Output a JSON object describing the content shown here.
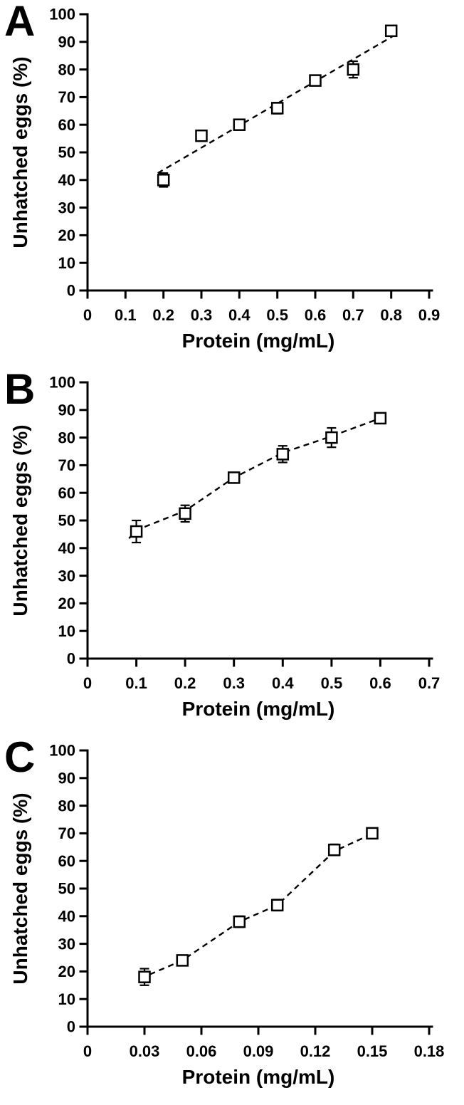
{
  "colors": {
    "foreground": "#000000",
    "background": "#ffffff",
    "marker_fill": "#ffffff"
  },
  "chart_data": [
    {
      "type": "scatter",
      "panel_label": "A",
      "xlabel": "Protein (mg/mL)",
      "ylabel": "Unhatched eggs (%)",
      "xlim": [
        0,
        0.9
      ],
      "ylim": [
        0,
        100
      ],
      "xtick_values": [
        0,
        0.1,
        0.2,
        0.3,
        0.4,
        0.5,
        0.6,
        0.7,
        0.8,
        0.9
      ],
      "xtick_labels": [
        "0",
        "0.1",
        "0.2",
        "0.3",
        "0.4",
        "0.5",
        "0.6",
        "0.7",
        "0.8",
        "0.9"
      ],
      "ytick_values": [
        0,
        10,
        20,
        30,
        40,
        50,
        60,
        70,
        80,
        90,
        100
      ],
      "ytick_labels": [
        "0",
        "10",
        "20",
        "30",
        "40",
        "50",
        "60",
        "70",
        "80",
        "90",
        "100"
      ],
      "grid": false,
      "legend": null,
      "marker": "open-square",
      "line_style": "dashed",
      "points": [
        {
          "x": 0.2,
          "y": 40,
          "err": 2.5
        },
        {
          "x": 0.3,
          "y": 56,
          "err": 1.8
        },
        {
          "x": 0.4,
          "y": 60,
          "err": 1.2
        },
        {
          "x": 0.5,
          "y": 66,
          "err": 2.0
        },
        {
          "x": 0.6,
          "y": 76,
          "err": 1.8
        },
        {
          "x": 0.7,
          "y": 80,
          "err": 3.0
        },
        {
          "x": 0.8,
          "y": 94,
          "err": 0
        }
      ],
      "trend": [
        [
          0.185,
          42.5
        ],
        [
          0.81,
          92.5
        ]
      ]
    },
    {
      "type": "scatter",
      "panel_label": "B",
      "xlabel": "Protein (mg/mL)",
      "ylabel": "Unhatched eggs (%)",
      "xlim": [
        0,
        0.7
      ],
      "ylim": [
        0,
        100
      ],
      "xtick_values": [
        0,
        0.1,
        0.2,
        0.3,
        0.4,
        0.5,
        0.6,
        0.7
      ],
      "xtick_labels": [
        "0",
        "0.1",
        "0.2",
        "0.3",
        "0.4",
        "0.5",
        "0.6",
        "0.7"
      ],
      "ytick_values": [
        0,
        10,
        20,
        30,
        40,
        50,
        60,
        70,
        80,
        90,
        100
      ],
      "ytick_labels": [
        "0",
        "10",
        "20",
        "30",
        "40",
        "50",
        "60",
        "70",
        "80",
        "90",
        "100"
      ],
      "grid": false,
      "legend": null,
      "marker": "open-square",
      "line_style": "dashed",
      "points": [
        {
          "x": 0.1,
          "y": 46,
          "err": 4.0
        },
        {
          "x": 0.2,
          "y": 52.5,
          "err": 3.0
        },
        {
          "x": 0.3,
          "y": 65.5,
          "err": 1.5
        },
        {
          "x": 0.4,
          "y": 74,
          "err": 3.0
        },
        {
          "x": 0.5,
          "y": 80,
          "err": 3.5
        },
        {
          "x": 0.6,
          "y": 87,
          "err": 1.0
        }
      ],
      "trend": [
        [
          0.085,
          43.5
        ],
        [
          0.1,
          46.5
        ],
        [
          0.2,
          53.5
        ],
        [
          0.3,
          65.5
        ],
        [
          0.4,
          74.5
        ],
        [
          0.5,
          80.5
        ],
        [
          0.6,
          87
        ]
      ]
    },
    {
      "type": "scatter",
      "panel_label": "C",
      "xlabel": "Protein (mg/mL)",
      "ylabel": "Unhatched eggs (%)",
      "xlim": [
        0,
        0.18
      ],
      "ylim": [
        0,
        100
      ],
      "xtick_values": [
        0,
        0.03,
        0.06,
        0.09,
        0.12,
        0.15,
        0.18
      ],
      "xtick_labels": [
        "0",
        "0.03",
        "0.06",
        "0.09",
        "0.12",
        "0.15",
        "0.18"
      ],
      "ytick_values": [
        0,
        10,
        20,
        30,
        40,
        50,
        60,
        70,
        80,
        90,
        100
      ],
      "ytick_labels": [
        "0",
        "10",
        "20",
        "30",
        "40",
        "50",
        "60",
        "70",
        "80",
        "90",
        "100"
      ],
      "grid": false,
      "legend": null,
      "marker": "open-square",
      "line_style": "dashed",
      "points": [
        {
          "x": 0.03,
          "y": 18,
          "err": 3.0
        },
        {
          "x": 0.05,
          "y": 24,
          "err": 1.8
        },
        {
          "x": 0.08,
          "y": 38,
          "err": 2.0
        },
        {
          "x": 0.1,
          "y": 44,
          "err": 2.0
        },
        {
          "x": 0.13,
          "y": 64,
          "err": 2.0
        },
        {
          "x": 0.15,
          "y": 70,
          "err": 1.0
        }
      ],
      "trend": [
        [
          0.028,
          17.5
        ],
        [
          0.05,
          24
        ],
        [
          0.08,
          38
        ],
        [
          0.1,
          44
        ],
        [
          0.13,
          63.5
        ],
        [
          0.149,
          69.5
        ]
      ]
    }
  ]
}
